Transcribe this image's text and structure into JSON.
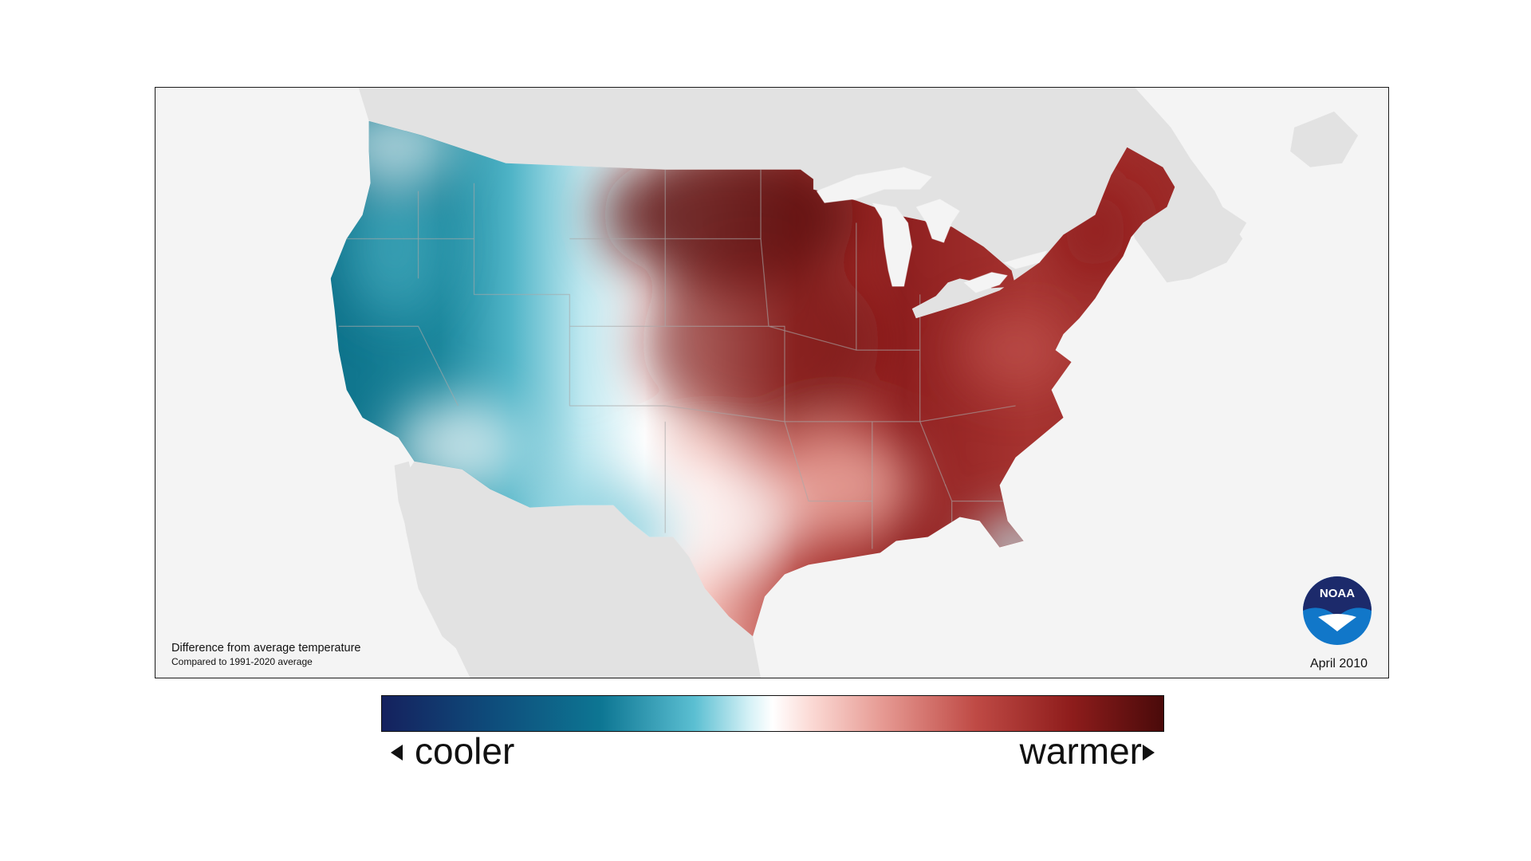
{
  "map": {
    "caption_title": "Difference from average temperature",
    "caption_subtitle": "Compared to 1991-2020 average",
    "date": "April 2010",
    "logo_text": "NOAA",
    "colors": {
      "land_outside": "#e2e2e2",
      "ocean": "#f4f4f4",
      "cool_strong": "#0c6f88",
      "cool_light": "#bfe8f0",
      "neutral": "#ffffff",
      "warm_light": "#f2b8b1",
      "warm_strong": "#7c1414",
      "logo_dark": "#1c2a6b",
      "logo_light": "#1177c9"
    }
  },
  "legend": {
    "cooler_label": "cooler",
    "warmer_label": "warmer"
  }
}
